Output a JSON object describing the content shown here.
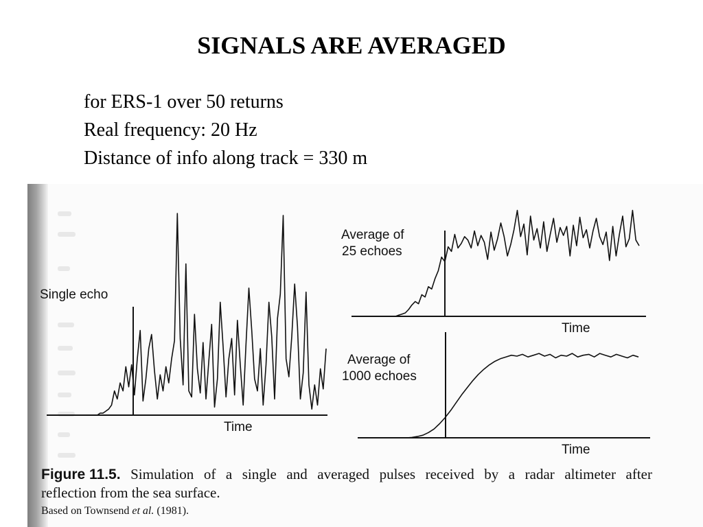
{
  "slide": {
    "title": "SIGNALS ARE AVERAGED",
    "bullets": [
      "for ERS-1 over 50 returns",
      "Real frequency: 20 Hz",
      "Distance of info along track = 330 m"
    ]
  },
  "figure": {
    "panels": [
      {
        "label_lines": [
          "Single echo"
        ],
        "axis_label": "Time",
        "samples": [
          0,
          0,
          0,
          0,
          0,
          0.01,
          0.01,
          0.02,
          0.03,
          0.05,
          0.12,
          0.08,
          0.16,
          0.12,
          0.24,
          0.14,
          0.25,
          0.1,
          0.28,
          0.42,
          0.07,
          0.18,
          0.33,
          0.4,
          0.22,
          0.08,
          0.2,
          0.12,
          0.24,
          0.16,
          0.28,
          0.37,
          1.0,
          0.38,
          0.15,
          0.75,
          0.12,
          0.09,
          0.5,
          0.23,
          0.11,
          0.36,
          0.08,
          0.27,
          0.45,
          0.04,
          0.18,
          0.56,
          0.34,
          0.09,
          0.28,
          0.38,
          0.1,
          0.47,
          0.25,
          0.05,
          0.35,
          0.63,
          0.42,
          0.18,
          0.12,
          0.33,
          0.05,
          0.25,
          0.56,
          0.39,
          0.08,
          0.48,
          0.6,
          0.99,
          0.28,
          0.19,
          0.39,
          0.65,
          0.44,
          0.08,
          0.21,
          0.61,
          0.15,
          0.03,
          0.15,
          0.05,
          0.23,
          0.13,
          0.33
        ]
      },
      {
        "label_lines": [
          "Average of",
          "25 echoes"
        ],
        "axis_label": "Time",
        "samples": [
          0,
          0.01,
          0.02,
          0.03,
          0.06,
          0.1,
          0.13,
          0.11,
          0.19,
          0.17,
          0.26,
          0.24,
          0.33,
          0.4,
          0.52,
          0.48,
          0.61,
          0.57,
          0.72,
          0.6,
          0.64,
          0.7,
          0.67,
          0.6,
          0.75,
          0.62,
          0.71,
          0.65,
          0.5,
          0.74,
          0.58,
          0.68,
          0.82,
          0.7,
          0.53,
          0.63,
          0.76,
          0.93,
          0.7,
          0.81,
          0.54,
          0.88,
          0.67,
          0.77,
          0.6,
          0.83,
          0.57,
          0.72,
          0.86,
          0.65,
          0.78,
          0.71,
          0.79,
          0.53,
          0.8,
          0.62,
          0.87,
          0.69,
          0.76,
          0.6,
          0.75,
          0.86,
          0.7,
          0.63,
          0.74,
          0.49,
          0.79,
          0.53,
          0.72,
          0.88,
          0.61,
          0.68,
          0.93,
          0.67,
          0.62
        ]
      },
      {
        "label_lines": [
          "Average of",
          "1000 echoes"
        ],
        "axis_label": "Time",
        "samples": [
          0,
          0.005,
          0.015,
          0.03,
          0.06,
          0.1,
          0.16,
          0.23,
          0.31,
          0.4,
          0.49,
          0.57,
          0.65,
          0.72,
          0.78,
          0.83,
          0.87,
          0.9,
          0.92,
          0.94,
          0.93,
          0.95,
          0.92,
          0.94,
          0.96,
          0.93,
          0.95,
          0.91,
          0.94,
          0.93,
          0.96,
          0.92,
          0.94,
          0.95,
          0.92,
          0.96,
          0.94,
          0.92,
          0.95,
          0.93,
          0.91,
          0.94,
          0.92
        ]
      }
    ],
    "caption": {
      "figure_label": "Figure 11.5.",
      "line1_words": [
        "Simulation",
        "of",
        "a",
        "single",
        "and",
        "averaged",
        "pulses",
        "received",
        "by",
        "a",
        "radar",
        "altimeter",
        "after"
      ],
      "line2": "reflection from the sea surface.",
      "source_prefix": "Based on Townsend ",
      "source_italic": "et al.",
      "source_suffix": " (1981)."
    }
  }
}
